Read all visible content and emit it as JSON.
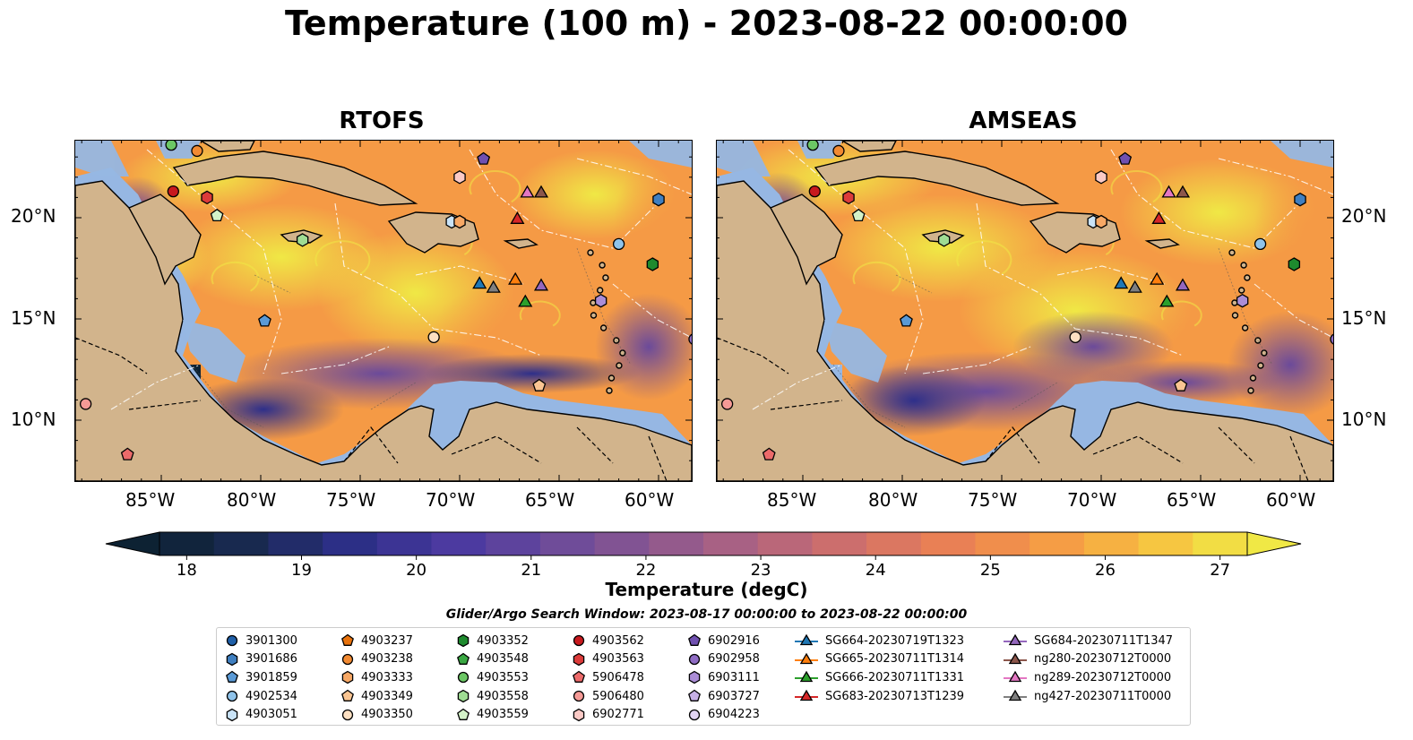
{
  "title": "Temperature (100 m) - 2023-08-22 00:00:00",
  "panels": [
    {
      "name": "RTOFS"
    },
    {
      "name": "AMSEAS"
    }
  ],
  "axes": {
    "lon_ticks": [
      "85°W",
      "80°W",
      "75°W",
      "70°W",
      "65°W",
      "60°W"
    ],
    "lat_ticks": [
      "20°N",
      "15°N",
      "10°N"
    ]
  },
  "colorbar": {
    "label": "Temperature (degC)",
    "ticks": [
      "18",
      "19",
      "20",
      "21",
      "22",
      "23",
      "24",
      "25",
      "26",
      "27"
    ],
    "range": [
      18,
      27
    ],
    "colormap": [
      "#0d2233",
      "#1a2a55",
      "#2e2f8a",
      "#4b3aa0",
      "#6b4a9a",
      "#8c5890",
      "#b06380",
      "#d0706a",
      "#ea8054",
      "#f59a45",
      "#f7bf40",
      "#f0e845"
    ]
  },
  "legend": {
    "title": "Glider/Argo Search Window: 2023-08-17 00:00:00 to 2023-08-22 00:00:00",
    "columns": [
      [
        {
          "label": "3901300",
          "shape": "circle",
          "color": "#1f5fa8"
        },
        {
          "label": "3901686",
          "shape": "hexagon",
          "color": "#3f7fc0"
        },
        {
          "label": "3901859",
          "shape": "pentagon",
          "color": "#5a9ad6"
        },
        {
          "label": "4902534",
          "shape": "circle",
          "color": "#8fc3ea"
        },
        {
          "label": "4903051",
          "shape": "hexagon",
          "color": "#c9e3f7"
        }
      ],
      [
        {
          "label": "4903237",
          "shape": "pentagon",
          "color": "#e8720c"
        },
        {
          "label": "4903238",
          "shape": "circle",
          "color": "#f28a32"
        },
        {
          "label": "4903333",
          "shape": "hexagon",
          "color": "#f7a865"
        },
        {
          "label": "4903349",
          "shape": "pentagon",
          "color": "#fac592"
        },
        {
          "label": "4903350",
          "shape": "circle",
          "color": "#fde0c2"
        }
      ],
      [
        {
          "label": "4903352",
          "shape": "hexagon",
          "color": "#1e8a2e"
        },
        {
          "label": "4903548",
          "shape": "pentagon",
          "color": "#3aa843"
        },
        {
          "label": "4903553",
          "shape": "circle",
          "color": "#6cc765"
        },
        {
          "label": "4903558",
          "shape": "hexagon",
          "color": "#9fdc93"
        },
        {
          "label": "4903559",
          "shape": "pentagon",
          "color": "#d4f2c8"
        }
      ],
      [
        {
          "label": "4903562",
          "shape": "circle",
          "color": "#c8191e"
        },
        {
          "label": "4903563",
          "shape": "hexagon",
          "color": "#dc3b3a"
        },
        {
          "label": "5906478",
          "shape": "pentagon",
          "color": "#ec6a6a"
        },
        {
          "label": "5906480",
          "shape": "circle",
          "color": "#f59a96"
        },
        {
          "label": "6902771",
          "shape": "hexagon",
          "color": "#fbcac6"
        }
      ],
      [
        {
          "label": "6902916",
          "shape": "pentagon",
          "color": "#7050b0"
        },
        {
          "label": "6902958",
          "shape": "circle",
          "color": "#8f6cc4"
        },
        {
          "label": "6903111",
          "shape": "hexagon",
          "color": "#ab8dd6"
        },
        {
          "label": "6903727",
          "shape": "pentagon",
          "color": "#c7b0e6"
        },
        {
          "label": "6904223",
          "shape": "circle",
          "color": "#e2d4f3"
        }
      ],
      [
        {
          "label": "SG664-20230719T1323",
          "shape": "triangle-line",
          "color": "#1f77b4"
        },
        {
          "label": "SG665-20230711T1314",
          "shape": "triangle-line",
          "color": "#ff7f0e"
        },
        {
          "label": "SG666-20230711T1331",
          "shape": "triangle-line",
          "color": "#2ca02c"
        },
        {
          "label": "SG683-20230713T1239",
          "shape": "triangle-line",
          "color": "#d62728"
        }
      ],
      [
        {
          "label": "SG684-20230711T1347",
          "shape": "triangle-line",
          "color": "#9467bd"
        },
        {
          "label": "ng280-20230712T0000",
          "shape": "triangle-line",
          "color": "#8c564b"
        },
        {
          "label": "ng289-20230712T0000",
          "shape": "triangle-line",
          "color": "#e377c2"
        },
        {
          "label": "ng427-20230711T0000",
          "shape": "triangle-line",
          "color": "#7f7f7f"
        }
      ]
    ]
  },
  "map_style": {
    "land_color": "#d2b48c",
    "ocean_shallow_color": "#96b7e3",
    "border_style": "dashed",
    "eez_style": "white dash-dot"
  }
}
